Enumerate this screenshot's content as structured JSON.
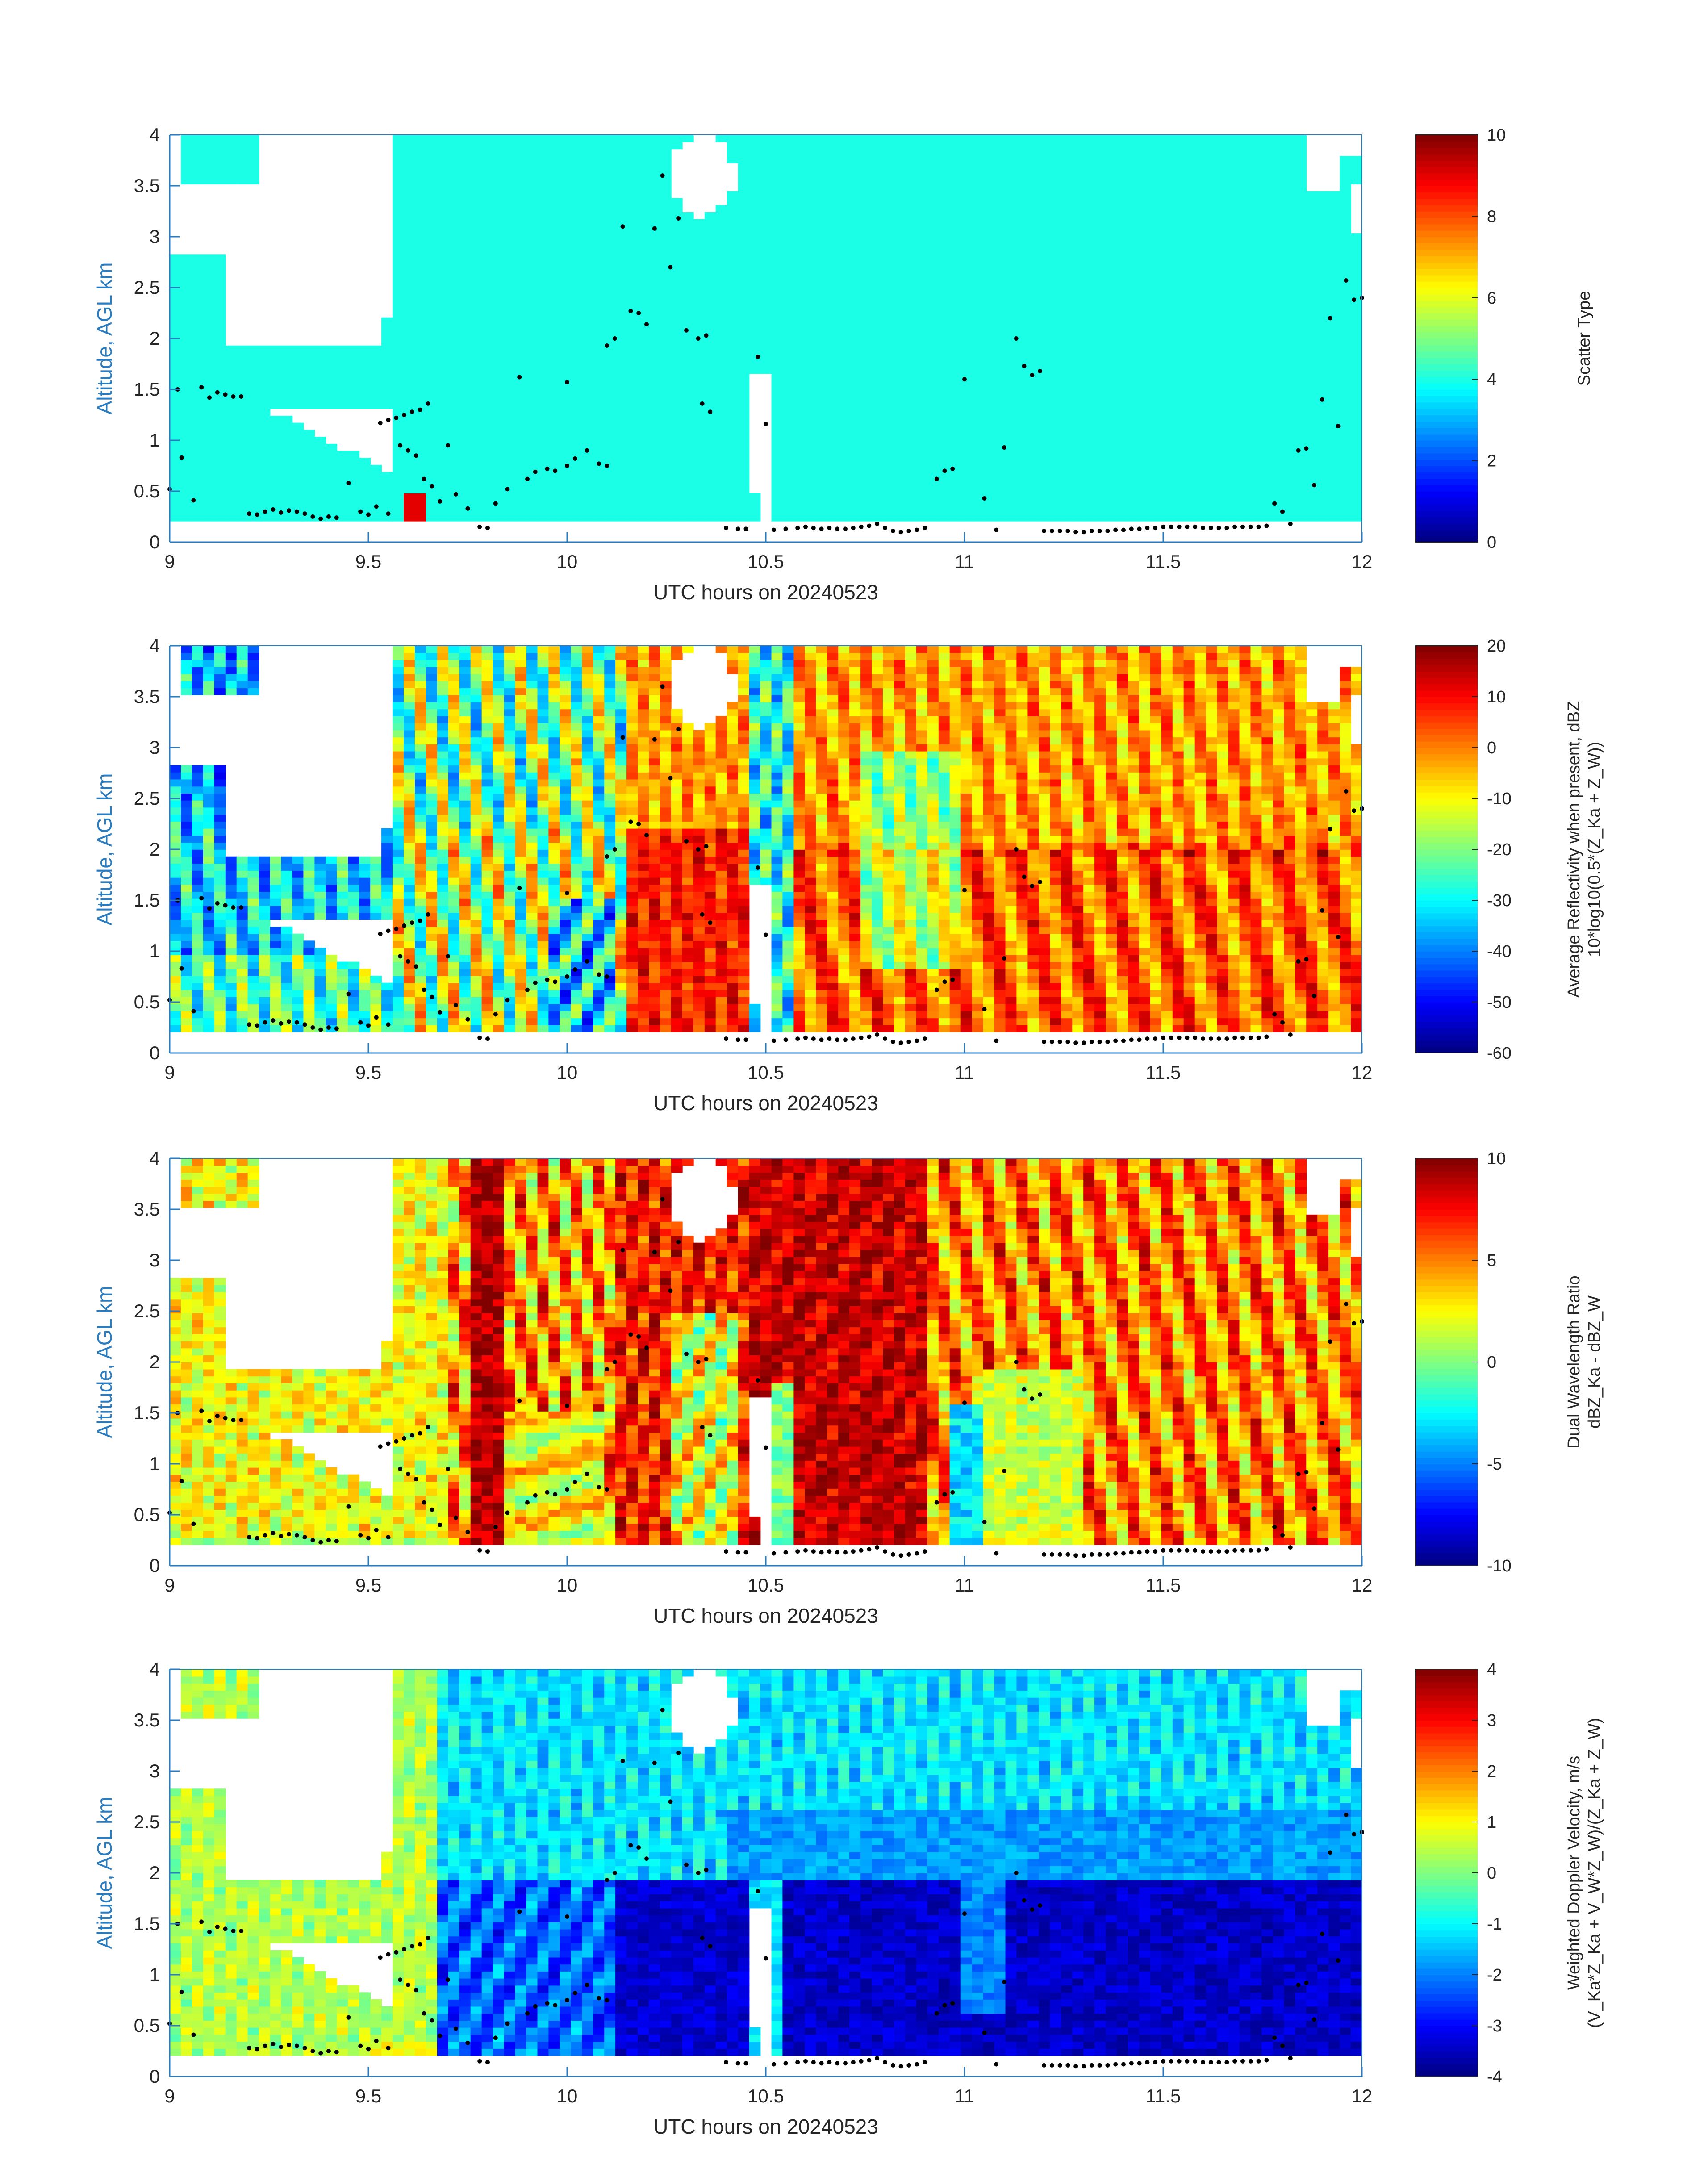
{
  "figure": {
    "background": "#ffffff",
    "axis_color": "#2b7bbf",
    "text_color": "#262626",
    "colormap": "jet"
  },
  "chart_data": [
    {
      "type": "heatmap",
      "xlabel": "UTC hours on 20240523",
      "ylabel": "Altitude, AGL km",
      "xlim": [
        9,
        12
      ],
      "ylim": [
        0,
        4
      ],
      "x_ticks": [
        "9",
        "9.5",
        "10",
        "10.5",
        "11",
        "11.5",
        "12"
      ],
      "y_ticks": [
        "0",
        "0.5",
        "1",
        "1.5",
        "2",
        "2.5",
        "3",
        "3.5",
        "4"
      ],
      "colorbar": {
        "label_lines": [
          "Scatter Type"
        ],
        "range": [
          0,
          10
        ],
        "ticks": [
          "0",
          "2",
          "4",
          "6",
          "8",
          "10"
        ]
      },
      "description_values": {
        "dominant_value": 4,
        "secondary_value": 9
      }
    },
    {
      "type": "heatmap",
      "xlabel": "UTC hours on 20240523",
      "ylabel": "Altitude, AGL km",
      "xlim": [
        9,
        12
      ],
      "ylim": [
        0,
        4
      ],
      "x_ticks": [
        "9",
        "9.5",
        "10",
        "10.5",
        "11",
        "11.5",
        "12"
      ],
      "y_ticks": [
        "0",
        "0.5",
        "1",
        "1.5",
        "2",
        "2.5",
        "3",
        "3.5",
        "4"
      ],
      "colorbar": {
        "label_lines": [
          "Average Reflectivity when present, dBZ",
          "10*log10(0.5*(Z_Ka + Z_W))"
        ],
        "range": [
          -60,
          20
        ],
        "ticks": [
          "-60",
          "-50",
          "-40",
          "-30",
          "-20",
          "-10",
          "0",
          "10",
          "20"
        ]
      }
    },
    {
      "type": "heatmap",
      "xlabel": "UTC hours on 20240523",
      "ylabel": "Altitude, AGL km",
      "xlim": [
        9,
        12
      ],
      "ylim": [
        0,
        4
      ],
      "x_ticks": [
        "9",
        "9.5",
        "10",
        "10.5",
        "11",
        "11.5",
        "12"
      ],
      "y_ticks": [
        "0",
        "0.5",
        "1",
        "1.5",
        "2",
        "2.5",
        "3",
        "3.5",
        "4"
      ],
      "colorbar": {
        "label_lines": [
          "Dual Wavelength Ratio",
          "dBZ_Ka - dBZ_W"
        ],
        "range": [
          -10,
          10
        ],
        "ticks": [
          "-10",
          "-5",
          "0",
          "5",
          "10"
        ]
      }
    },
    {
      "type": "heatmap",
      "xlabel": "UTC hours on 20240523",
      "ylabel": "Altitude, AGL km",
      "xlim": [
        9,
        12
      ],
      "ylim": [
        0,
        4
      ],
      "x_ticks": [
        "9",
        "9.5",
        "10",
        "10.5",
        "11",
        "11.5",
        "12"
      ],
      "y_ticks": [
        "0",
        "0.5",
        "1",
        "1.5",
        "2",
        "2.5",
        "3",
        "3.5",
        "4"
      ],
      "colorbar": {
        "label_lines": [
          "Weighted Doppler Velocity, m/s",
          "(V_Ka*Z_Ka + V_W*Z_W)/(Z_Ka + Z_W)"
        ],
        "range": [
          -4,
          4
        ],
        "ticks": [
          "-4",
          "-3",
          "-2",
          "-1",
          "0",
          "1",
          "2",
          "3",
          "4"
        ]
      }
    }
  ],
  "cloud_base_points": [
    [
      9.0,
      0.52
    ],
    [
      9.03,
      0.83
    ],
    [
      9.06,
      0.41
    ],
    [
      9.02,
      1.5
    ],
    [
      9.08,
      1.52
    ],
    [
      9.1,
      1.42
    ],
    [
      9.12,
      1.47
    ],
    [
      9.14,
      1.45
    ],
    [
      9.16,
      1.43
    ],
    [
      9.18,
      1.43
    ],
    [
      9.2,
      0.28
    ],
    [
      9.22,
      0.27
    ],
    [
      9.24,
      0.3
    ],
    [
      9.26,
      0.32
    ],
    [
      9.28,
      0.29
    ],
    [
      9.3,
      0.31
    ],
    [
      9.32,
      0.3
    ],
    [
      9.34,
      0.28
    ],
    [
      9.36,
      0.25
    ],
    [
      9.38,
      0.23
    ],
    [
      9.4,
      0.25
    ],
    [
      9.42,
      0.24
    ],
    [
      9.45,
      0.58
    ],
    [
      9.48,
      0.3
    ],
    [
      9.5,
      0.27
    ],
    [
      9.52,
      0.35
    ],
    [
      9.55,
      0.28
    ],
    [
      9.53,
      1.17
    ],
    [
      9.55,
      1.2
    ],
    [
      9.57,
      1.22
    ],
    [
      9.59,
      1.25
    ],
    [
      9.61,
      1.28
    ],
    [
      9.63,
      1.3
    ],
    [
      9.65,
      1.36
    ],
    [
      9.58,
      0.95
    ],
    [
      9.6,
      0.9
    ],
    [
      9.62,
      0.85
    ],
    [
      9.64,
      0.62
    ],
    [
      9.66,
      0.55
    ],
    [
      9.68,
      0.4
    ],
    [
      9.7,
      0.95
    ],
    [
      9.72,
      0.47
    ],
    [
      9.75,
      0.33
    ],
    [
      9.78,
      0.15
    ],
    [
      9.8,
      0.14
    ],
    [
      9.82,
      0.38
    ],
    [
      9.85,
      0.52
    ],
    [
      9.88,
      1.62
    ],
    [
      9.9,
      0.62
    ],
    [
      9.92,
      0.69
    ],
    [
      9.95,
      0.72
    ],
    [
      9.97,
      0.7
    ],
    [
      10.0,
      0.75
    ],
    [
      10.02,
      0.82
    ],
    [
      10.0,
      1.57
    ],
    [
      10.05,
      0.9
    ],
    [
      10.08,
      0.77
    ],
    [
      10.1,
      0.75
    ],
    [
      10.1,
      1.93
    ],
    [
      10.12,
      2.0
    ],
    [
      10.14,
      3.1
    ],
    [
      10.16,
      2.27
    ],
    [
      10.18,
      2.25
    ],
    [
      10.2,
      2.14
    ],
    [
      10.22,
      3.08
    ],
    [
      10.24,
      3.6
    ],
    [
      10.26,
      2.7
    ],
    [
      10.28,
      3.18
    ],
    [
      10.3,
      2.08
    ],
    [
      10.33,
      2.0
    ],
    [
      10.35,
      2.03
    ],
    [
      10.34,
      1.36
    ],
    [
      10.36,
      1.28
    ],
    [
      10.4,
      0.14
    ],
    [
      10.43,
      0.13
    ],
    [
      10.45,
      0.13
    ],
    [
      10.48,
      1.82
    ],
    [
      10.5,
      1.16
    ],
    [
      10.52,
      0.12
    ],
    [
      10.55,
      0.13
    ],
    [
      10.58,
      0.14
    ],
    [
      10.6,
      0.15
    ],
    [
      10.62,
      0.14
    ],
    [
      10.64,
      0.13
    ],
    [
      10.66,
      0.14
    ],
    [
      10.68,
      0.13
    ],
    [
      10.7,
      0.13
    ],
    [
      10.72,
      0.14
    ],
    [
      10.74,
      0.15
    ],
    [
      10.76,
      0.16
    ],
    [
      10.78,
      0.18
    ],
    [
      10.8,
      0.14
    ],
    [
      10.82,
      0.11
    ],
    [
      10.84,
      0.1
    ],
    [
      10.86,
      0.11
    ],
    [
      10.88,
      0.12
    ],
    [
      10.9,
      0.14
    ],
    [
      10.93,
      0.62
    ],
    [
      10.95,
      0.7
    ],
    [
      10.97,
      0.72
    ],
    [
      11.0,
      1.6
    ],
    [
      11.05,
      0.43
    ],
    [
      11.08,
      0.12
    ],
    [
      11.1,
      0.93
    ],
    [
      11.13,
      2.0
    ],
    [
      11.15,
      1.73
    ],
    [
      11.17,
      1.64
    ],
    [
      11.19,
      1.68
    ],
    [
      11.2,
      0.11
    ],
    [
      11.22,
      0.11
    ],
    [
      11.24,
      0.11
    ],
    [
      11.26,
      0.11
    ],
    [
      11.28,
      0.1
    ],
    [
      11.3,
      0.1
    ],
    [
      11.32,
      0.11
    ],
    [
      11.34,
      0.11
    ],
    [
      11.36,
      0.11
    ],
    [
      11.38,
      0.12
    ],
    [
      11.4,
      0.12
    ],
    [
      11.42,
      0.13
    ],
    [
      11.44,
      0.13
    ],
    [
      11.46,
      0.14
    ],
    [
      11.48,
      0.14
    ],
    [
      11.5,
      0.15
    ],
    [
      11.52,
      0.15
    ],
    [
      11.54,
      0.15
    ],
    [
      11.56,
      0.15
    ],
    [
      11.58,
      0.15
    ],
    [
      11.6,
      0.14
    ],
    [
      11.62,
      0.14
    ],
    [
      11.64,
      0.14
    ],
    [
      11.66,
      0.14
    ],
    [
      11.68,
      0.15
    ],
    [
      11.7,
      0.15
    ],
    [
      11.72,
      0.15
    ],
    [
      11.74,
      0.15
    ],
    [
      11.76,
      0.16
    ],
    [
      11.78,
      0.38
    ],
    [
      11.8,
      0.3
    ],
    [
      11.82,
      0.18
    ],
    [
      11.84,
      0.9
    ],
    [
      11.86,
      0.92
    ],
    [
      11.88,
      0.56
    ],
    [
      11.9,
      1.4
    ],
    [
      11.92,
      2.2
    ],
    [
      11.94,
      1.14
    ],
    [
      11.96,
      2.57
    ],
    [
      11.98,
      2.38
    ],
    [
      12.0,
      2.4
    ]
  ]
}
